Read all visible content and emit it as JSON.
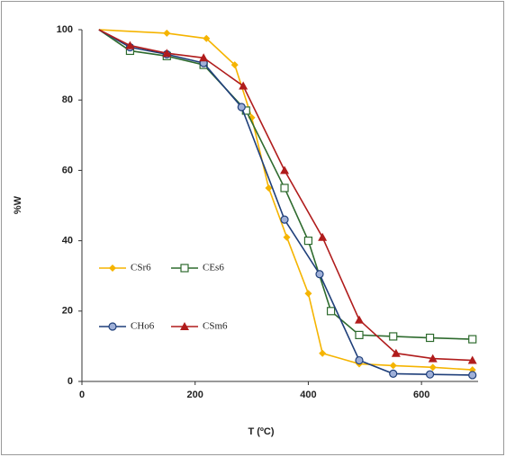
{
  "chart_data": {
    "type": "line",
    "xlabel": "T (ºC)",
    "ylabel": "%W",
    "xlim": [
      0,
      700
    ],
    "xticks": [
      0,
      200,
      400,
      600
    ],
    "ylim": [
      0,
      100
    ],
    "yticks": [
      0,
      20,
      40,
      60,
      80,
      100
    ],
    "grid": false,
    "series": [
      {
        "name": "CSr6",
        "color": "#f5b400",
        "marker": "diamond",
        "x": [
          30,
          150,
          220,
          270,
          300,
          330,
          362,
          400,
          425,
          490,
          550,
          620,
          690
        ],
        "values": [
          100,
          99,
          97.5,
          90,
          75,
          55,
          41,
          25,
          8,
          5,
          4.5,
          4,
          3.3
        ]
      },
      {
        "name": "CEs6",
        "color": "#2e6b2e",
        "marker": "square",
        "x": [
          30,
          85,
          150,
          215,
          290,
          358,
          400,
          440,
          490,
          550,
          615,
          690
        ],
        "values": [
          100,
          94,
          92.5,
          90,
          77,
          55,
          40,
          20,
          13.2,
          12.8,
          12.4,
          12
        ]
      },
      {
        "name": "CHo6",
        "color": "#1f3f7a",
        "marker": "circle",
        "x": [
          30,
          85,
          150,
          215,
          282,
          358,
          420,
          490,
          550,
          615,
          690
        ],
        "values": [
          100,
          95,
          93,
          90.5,
          78,
          46,
          30.5,
          6,
          2.2,
          2,
          1.8
        ]
      },
      {
        "name": "CSm6",
        "color": "#b01c1c",
        "marker": "triangle",
        "x": [
          30,
          85,
          150,
          215,
          285,
          358,
          425,
          490,
          555,
          620,
          690
        ],
        "values": [
          100,
          95.5,
          93.3,
          92,
          84,
          60,
          41,
          17.5,
          8,
          6.5,
          6
        ]
      }
    ]
  }
}
